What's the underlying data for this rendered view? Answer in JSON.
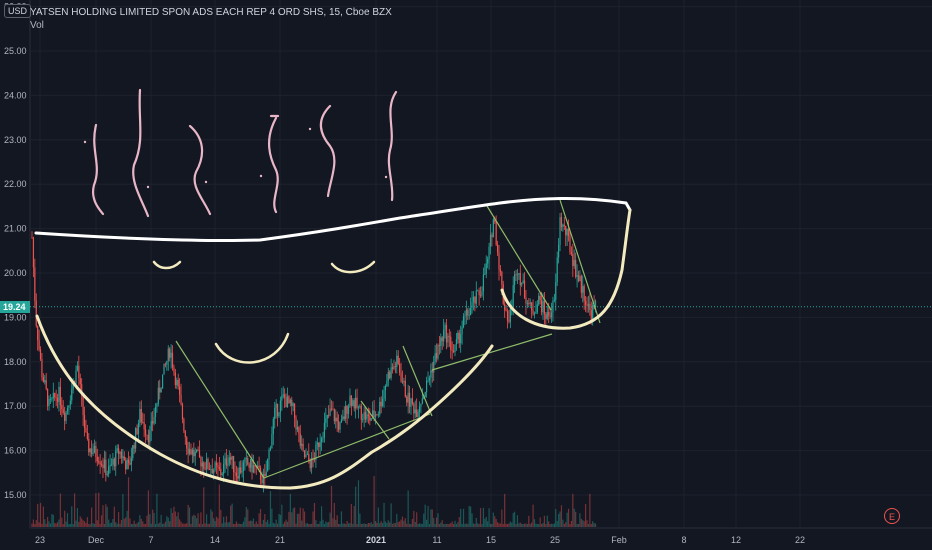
{
  "header": {
    "symbol_line": "YATSEN HOLDING LIMITED SPON ADS EACH REP 4 ORD SHS, 15, Cboe BZX",
    "volume_label": "Vol",
    "currency": "USD"
  },
  "last_price": "19.24",
  "earnings_marker": "E",
  "colors": {
    "background": "#131722",
    "up": "#26a69a",
    "down": "#ef5350",
    "grid": "#1e222d",
    "axis_text": "#b2b5be",
    "drawing_white": "#ffffff",
    "drawing_cream": "#f3ebbf",
    "drawing_pink": "#e8b6c6",
    "trendline": "#8fbc6a"
  },
  "chart_data": {
    "type": "candlestick",
    "title": "YATSEN HOLDING LIMITED SPON ADS EACH REP 4 ORD SHS, 15, Cboe BZX",
    "y_ticks": [
      "15.00",
      "16.00",
      "17.00",
      "18.00",
      "19.00",
      "20.00",
      "21.00",
      "22.00",
      "23.00",
      "24.00",
      "25.00",
      "26.00"
    ],
    "x_ticks": [
      "23",
      "Dec",
      "7",
      "14",
      "21",
      "2021",
      "11",
      "15",
      "25",
      "Feb",
      "8",
      "12",
      "22"
    ],
    "ylim": [
      14.5,
      26.0
    ],
    "grid": true,
    "price_path": [
      {
        "t": 0,
        "p": 20.8
      },
      {
        "t": 4,
        "p": 19.0
      },
      {
        "t": 10,
        "p": 17.8
      },
      {
        "t": 18,
        "p": 17.0
      },
      {
        "t": 28,
        "p": 17.3
      },
      {
        "t": 35,
        "p": 16.8
      },
      {
        "t": 48,
        "p": 17.9
      },
      {
        "t": 58,
        "p": 16.1
      },
      {
        "t": 70,
        "p": 15.9
      },
      {
        "t": 80,
        "p": 15.5
      },
      {
        "t": 92,
        "p": 16.0
      },
      {
        "t": 102,
        "p": 15.6
      },
      {
        "t": 114,
        "p": 16.8
      },
      {
        "t": 124,
        "p": 16.3
      },
      {
        "t": 136,
        "p": 17.5
      },
      {
        "t": 146,
        "p": 18.3
      },
      {
        "t": 150,
        "p": 17.8
      },
      {
        "t": 154,
        "p": 17.4
      },
      {
        "t": 164,
        "p": 16.1
      },
      {
        "t": 172,
        "p": 15.9
      },
      {
        "t": 182,
        "p": 15.7
      },
      {
        "t": 192,
        "p": 15.6
      },
      {
        "t": 200,
        "p": 15.5
      },
      {
        "t": 208,
        "p": 15.9
      },
      {
        "t": 216,
        "p": 15.5
      },
      {
        "t": 226,
        "p": 15.7
      },
      {
        "t": 236,
        "p": 15.6
      },
      {
        "t": 246,
        "p": 15.3
      },
      {
        "t": 256,
        "p": 16.8
      },
      {
        "t": 266,
        "p": 17.2
      },
      {
        "t": 276,
        "p": 16.9
      },
      {
        "t": 286,
        "p": 15.9
      },
      {
        "t": 296,
        "p": 15.7
      },
      {
        "t": 306,
        "p": 16.4
      },
      {
        "t": 316,
        "p": 16.9
      },
      {
        "t": 326,
        "p": 16.5
      },
      {
        "t": 336,
        "p": 17.2
      },
      {
        "t": 346,
        "p": 16.9
      },
      {
        "t": 356,
        "p": 16.7
      },
      {
        "t": 366,
        "p": 16.9
      },
      {
        "t": 376,
        "p": 17.7
      },
      {
        "t": 386,
        "p": 18.0
      },
      {
        "t": 396,
        "p": 17.2
      },
      {
        "t": 406,
        "p": 16.9
      },
      {
        "t": 416,
        "p": 17.4
      },
      {
        "t": 426,
        "p": 18.1
      },
      {
        "t": 436,
        "p": 18.7
      },
      {
        "t": 446,
        "p": 18.2
      },
      {
        "t": 456,
        "p": 18.9
      },
      {
        "t": 466,
        "p": 19.3
      },
      {
        "t": 474,
        "p": 19.6
      },
      {
        "t": 482,
        "p": 20.3
      },
      {
        "t": 488,
        "p": 21.3
      },
      {
        "t": 492,
        "p": 20.5
      },
      {
        "t": 498,
        "p": 19.4
      },
      {
        "t": 504,
        "p": 18.9
      },
      {
        "t": 512,
        "p": 20.2
      },
      {
        "t": 520,
        "p": 19.6
      },
      {
        "t": 528,
        "p": 19.1
      },
      {
        "t": 536,
        "p": 19.4
      },
      {
        "t": 544,
        "p": 19.0
      },
      {
        "t": 552,
        "p": 19.3
      },
      {
        "t": 558,
        "p": 21.2
      },
      {
        "t": 566,
        "p": 20.8
      },
      {
        "t": 574,
        "p": 20.1
      },
      {
        "t": 582,
        "p": 19.6
      },
      {
        "t": 590,
        "p": 19.1
      },
      {
        "t": 596,
        "p": 19.24
      }
    ]
  },
  "drawings": {
    "trendlines": [
      {
        "from": [
          176,
          341
        ],
        "to": [
          264,
          478
        ]
      },
      {
        "from": [
          264,
          478
        ],
        "to": [
          430,
          414
        ]
      },
      {
        "from": [
          361,
          401
        ],
        "to": [
          389,
          439
        ]
      },
      {
        "from": [
          403,
          346
        ],
        "to": [
          432,
          416
        ]
      },
      {
        "from": [
          432,
          370
        ],
        "to": [
          552,
          334
        ]
      },
      {
        "from": [
          487,
          206
        ],
        "to": [
          551,
          310
        ]
      },
      {
        "from": [
          560,
          200
        ],
        "to": [
          600,
          323
        ]
      }
    ]
  }
}
